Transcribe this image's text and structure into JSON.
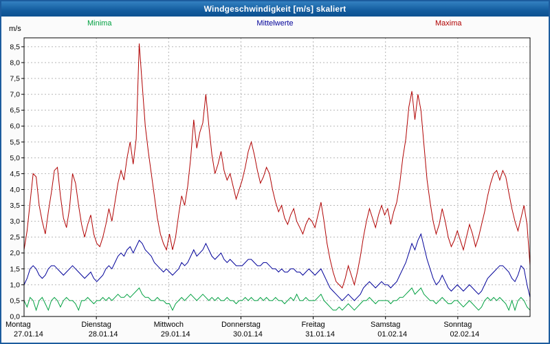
{
  "window": {
    "title": "Windgeschwindigkeit [m/s] skaliert"
  },
  "legend": [
    {
      "label": "Minima",
      "color": "#00a040"
    },
    {
      "label": "Mittelwerte",
      "color": "#000099"
    },
    {
      "label": "Maxima",
      "color": "#b00000"
    }
  ],
  "chart_data": {
    "type": "line",
    "title": "Windgeschwindigkeit [m/s] skaliert",
    "xlabel": "",
    "ylabel": "m/s",
    "ylim": [
      0,
      8.78
    ],
    "y_tick_step": 0.5,
    "y_tick_labels": [
      "0,0",
      "0,5",
      "1,0",
      "1,5",
      "2,0",
      "2,5",
      "3,0",
      "3,5",
      "4,0",
      "4,5",
      "5,0",
      "5,5",
      "6,0",
      "6,5",
      "7,0",
      "7,5",
      "8,0",
      "8,5"
    ],
    "grid": "dashed",
    "legend_position": "top",
    "points_per_day": 24,
    "x_days": [
      {
        "day": "Montag",
        "date": "27.01.14"
      },
      {
        "day": "Dienstag",
        "date": "28.01.14"
      },
      {
        "day": "Mittwoch",
        "date": "29.01.14"
      },
      {
        "day": "Donnerstag",
        "date": "30.01.14"
      },
      {
        "day": "Freitag",
        "date": "31.01.14"
      },
      {
        "day": "Samstag",
        "date": "01.02.14"
      },
      {
        "day": "Sonntag",
        "date": "02.02.14"
      }
    ],
    "series": [
      {
        "name": "Minima",
        "color": "#00a040",
        "values": [
          0.5,
          0.3,
          0.6,
          0.5,
          0.2,
          0.5,
          0.6,
          0.4,
          0.2,
          0.5,
          0.6,
          0.5,
          0.3,
          0.5,
          0.6,
          0.5,
          0.5,
          0.4,
          0.2,
          0.5,
          0.5,
          0.6,
          0.5,
          0.4,
          0.5,
          0.5,
          0.6,
          0.5,
          0.6,
          0.5,
          0.6,
          0.7,
          0.6,
          0.6,
          0.7,
          0.6,
          0.7,
          0.8,
          0.9,
          0.7,
          0.6,
          0.6,
          0.5,
          0.5,
          0.6,
          0.5,
          0.5,
          0.4,
          0.4,
          0.2,
          0.4,
          0.5,
          0.6,
          0.5,
          0.6,
          0.7,
          0.6,
          0.5,
          0.6,
          0.7,
          0.6,
          0.5,
          0.6,
          0.5,
          0.6,
          0.5,
          0.5,
          0.6,
          0.5,
          0.5,
          0.4,
          0.5,
          0.5,
          0.6,
          0.5,
          0.6,
          0.5,
          0.5,
          0.6,
          0.5,
          0.6,
          0.5,
          0.5,
          0.6,
          0.5,
          0.5,
          0.4,
          0.5,
          0.6,
          0.5,
          0.7,
          0.5,
          0.5,
          0.6,
          0.5,
          0.5,
          0.5,
          0.6,
          0.7,
          0.5,
          0.4,
          0.3,
          0.2,
          0.2,
          0.3,
          0.2,
          0.3,
          0.4,
          0.3,
          0.2,
          0.3,
          0.4,
          0.5,
          0.5,
          0.6,
          0.5,
          0.4,
          0.5,
          0.5,
          0.5,
          0.5,
          0.4,
          0.5,
          0.5,
          0.6,
          0.6,
          0.7,
          0.8,
          0.9,
          0.7,
          0.8,
          0.9,
          0.7,
          0.6,
          0.5,
          0.5,
          0.4,
          0.5,
          0.6,
          0.5,
          0.4,
          0.4,
          0.5,
          0.5,
          0.4,
          0.3,
          0.4,
          0.5,
          0.4,
          0.3,
          0.2,
          0.3,
          0.5,
          0.6,
          0.5,
          0.6,
          0.5,
          0.6,
          0.5,
          0.4,
          0.2,
          0.5,
          0.2,
          0.5,
          0.6,
          0.5,
          0.3,
          0.2
        ]
      },
      {
        "name": "Mittelwerte",
        "color": "#000099",
        "values": [
          1.0,
          1.2,
          1.5,
          1.6,
          1.5,
          1.3,
          1.2,
          1.3,
          1.5,
          1.6,
          1.6,
          1.5,
          1.4,
          1.3,
          1.4,
          1.5,
          1.6,
          1.5,
          1.4,
          1.3,
          1.2,
          1.3,
          1.4,
          1.2,
          1.1,
          1.2,
          1.3,
          1.5,
          1.6,
          1.5,
          1.7,
          1.9,
          2.0,
          1.9,
          2.1,
          2.2,
          2.0,
          2.2,
          2.4,
          2.3,
          2.1,
          2.0,
          1.9,
          1.7,
          1.6,
          1.5,
          1.4,
          1.5,
          1.4,
          1.3,
          1.4,
          1.5,
          1.7,
          1.6,
          1.7,
          1.9,
          2.1,
          1.9,
          2.0,
          2.1,
          2.3,
          2.1,
          1.9,
          1.8,
          1.9,
          2.0,
          1.8,
          1.7,
          1.8,
          1.7,
          1.6,
          1.6,
          1.6,
          1.7,
          1.8,
          1.8,
          1.7,
          1.6,
          1.6,
          1.7,
          1.7,
          1.6,
          1.5,
          1.5,
          1.4,
          1.5,
          1.4,
          1.4,
          1.5,
          1.5,
          1.4,
          1.4,
          1.3,
          1.4,
          1.5,
          1.4,
          1.3,
          1.4,
          1.5,
          1.3,
          1.1,
          0.9,
          0.8,
          0.7,
          0.6,
          0.5,
          0.6,
          0.7,
          0.6,
          0.5,
          0.6,
          0.7,
          0.9,
          1.0,
          1.1,
          1.0,
          0.9,
          1.0,
          1.1,
          1.0,
          1.0,
          0.9,
          1.0,
          1.1,
          1.3,
          1.5,
          1.7,
          2.0,
          2.3,
          2.1,
          2.4,
          2.6,
          2.2,
          1.8,
          1.5,
          1.2,
          1.0,
          1.1,
          1.3,
          1.1,
          0.9,
          0.8,
          0.9,
          1.0,
          0.9,
          0.8,
          0.9,
          1.0,
          0.9,
          0.8,
          0.7,
          0.8,
          1.0,
          1.2,
          1.3,
          1.4,
          1.5,
          1.6,
          1.6,
          1.5,
          1.4,
          1.2,
          1.1,
          1.3,
          1.6,
          1.5,
          1.0,
          0.6
        ]
      },
      {
        "name": "Maxima",
        "color": "#b00000",
        "values": [
          2.1,
          2.7,
          3.6,
          4.5,
          4.4,
          3.5,
          3.0,
          2.6,
          3.3,
          3.9,
          4.6,
          4.7,
          3.8,
          3.1,
          2.8,
          3.4,
          4.5,
          4.2,
          3.5,
          2.9,
          2.5,
          2.9,
          3.2,
          2.6,
          2.3,
          2.2,
          2.5,
          2.9,
          3.4,
          3.0,
          3.6,
          4.2,
          4.6,
          4.3,
          5.0,
          5.5,
          4.8,
          5.6,
          8.6,
          7.3,
          6.0,
          5.2,
          4.5,
          3.8,
          3.1,
          2.6,
          2.3,
          2.1,
          2.6,
          2.1,
          2.5,
          3.2,
          3.8,
          3.5,
          4.1,
          5.0,
          6.2,
          5.3,
          5.8,
          6.1,
          7.0,
          6.0,
          5.1,
          4.5,
          4.8,
          5.2,
          4.6,
          4.3,
          4.5,
          4.1,
          3.7,
          4.0,
          4.3,
          4.7,
          5.2,
          5.5,
          5.1,
          4.6,
          4.2,
          4.4,
          4.7,
          4.5,
          4.0,
          3.6,
          3.3,
          3.5,
          3.1,
          2.9,
          3.2,
          3.4,
          3.0,
          2.8,
          2.6,
          2.9,
          3.1,
          3.0,
          2.8,
          3.2,
          3.6,
          3.0,
          2.3,
          1.8,
          1.4,
          1.1,
          1.0,
          0.9,
          1.2,
          1.6,
          1.3,
          1.0,
          1.4,
          1.9,
          2.5,
          3.0,
          3.4,
          3.1,
          2.8,
          3.2,
          3.5,
          3.2,
          3.4,
          2.9,
          3.3,
          3.6,
          4.2,
          5.0,
          5.6,
          6.6,
          7.1,
          6.2,
          7.0,
          6.5,
          5.4,
          4.3,
          3.6,
          3.0,
          2.6,
          2.9,
          3.4,
          3.0,
          2.5,
          2.2,
          2.4,
          2.7,
          2.4,
          2.1,
          2.5,
          2.9,
          2.6,
          2.2,
          2.5,
          2.9,
          3.3,
          3.8,
          4.2,
          4.5,
          4.6,
          4.3,
          4.6,
          4.4,
          3.9,
          3.4,
          3.0,
          2.7,
          3.1,
          3.5,
          2.9,
          1.6
        ]
      }
    ]
  }
}
